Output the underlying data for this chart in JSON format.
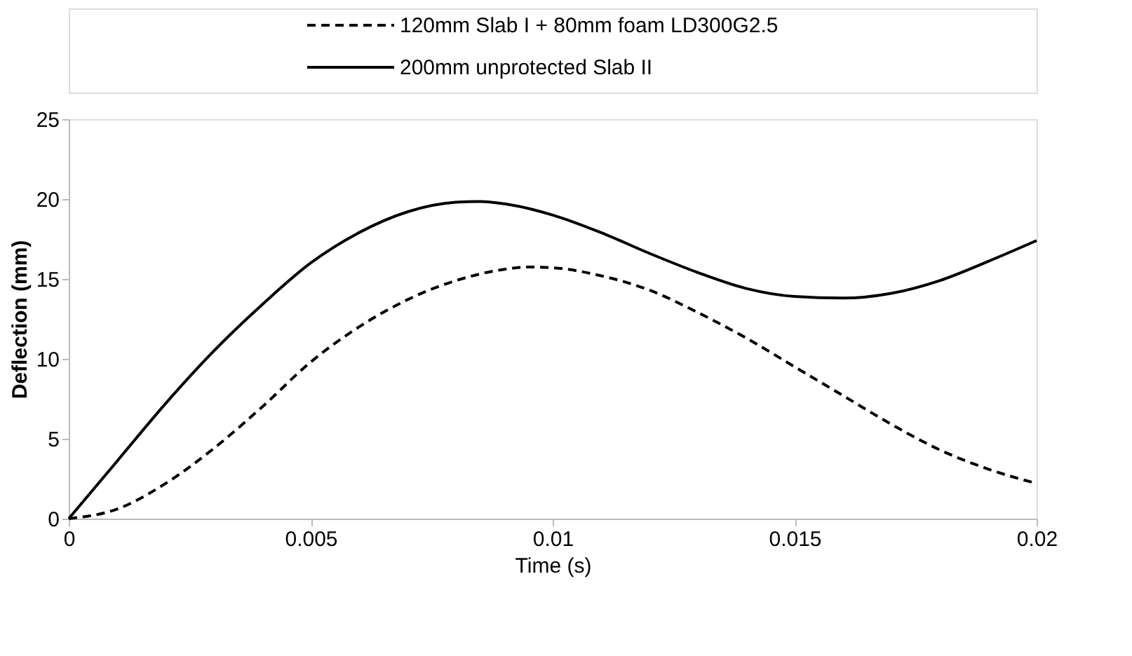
{
  "chart_data": {
    "type": "line",
    "xlabel": "Time (s)",
    "ylabel": "Deflection (mm)",
    "xlim": [
      0,
      0.02
    ],
    "xticks": [
      0,
      0.005,
      0.01,
      0.015,
      0.02
    ],
    "ylim": [
      0,
      25
    ],
    "yticks": [
      0,
      5,
      10,
      15,
      20,
      25
    ],
    "grid": false,
    "legend": "top",
    "marker": "none",
    "series": [
      {
        "name": "120mm Slab I + 80mm foam LD300G2.5",
        "color": "#000000",
        "line_style": "dashed",
        "x": [
          0,
          0.001,
          0.002,
          0.003,
          0.004,
          0.005,
          0.006,
          0.007,
          0.008,
          0.009,
          0.0095,
          0.01,
          0.011,
          0.012,
          0.013,
          0.014,
          0.015,
          0.016,
          0.017,
          0.018,
          0.019,
          0.02
        ],
        "values": [
          0,
          0.6,
          2.2,
          4.4,
          7.0,
          9.8,
          12.0,
          13.7,
          14.9,
          15.6,
          15.75,
          15.7,
          15.2,
          14.3,
          12.9,
          11.3,
          9.5,
          7.7,
          5.9,
          4.3,
          3.1,
          2.2
        ]
      },
      {
        "name": "200mm unprotected Slab II",
        "color": "#000000",
        "line_style": "solid",
        "x": [
          0,
          0.001,
          0.002,
          0.003,
          0.004,
          0.005,
          0.006,
          0.007,
          0.008,
          0.0085,
          0.009,
          0.01,
          0.011,
          0.012,
          0.013,
          0.014,
          0.015,
          0.016,
          0.017,
          0.018,
          0.019,
          0.02
        ],
        "values": [
          0,
          3.6,
          7.2,
          10.5,
          13.4,
          16.0,
          17.9,
          19.2,
          19.8,
          19.85,
          19.7,
          19.0,
          17.9,
          16.6,
          15.4,
          14.4,
          13.9,
          13.8,
          14.1,
          14.9,
          16.1,
          17.4
        ]
      }
    ]
  }
}
